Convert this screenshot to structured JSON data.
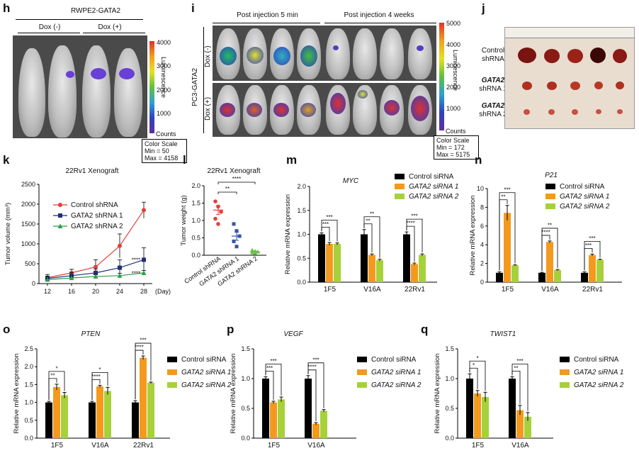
{
  "panels": {
    "h": {
      "letter": "h",
      "title": "RWPE2-GATA2",
      "groups": [
        "Dox (-)",
        "Dox (+)"
      ],
      "colorbar": {
        "ticks": [
          "4000",
          "3000",
          "2000",
          "1000"
        ],
        "label": "Luminescence",
        "counts": "Counts"
      },
      "scale_box": [
        "Color Scale",
        "Min = 50",
        "Max = 4158"
      ]
    },
    "i": {
      "letter": "i",
      "headers": [
        "Post injection 5 min",
        "Post injection 4 weeks"
      ],
      "row_group": "PC3-GATA2",
      "rows": [
        "Dox (-)",
        "Dox (+)"
      ],
      "colorbar": {
        "ticks": [
          "5000",
          "4000",
          "3000",
          "2000",
          "1000"
        ],
        "label": "Luminescence",
        "counts": "Counts"
      },
      "scale_box": [
        "Color Scale",
        "Min = 172",
        "Max = 5175"
      ]
    },
    "j": {
      "letter": "j",
      "rows": [
        {
          "line1": "Control",
          "line2": "shRNA"
        },
        {
          "line1": "GATA2",
          "line2": "shRNA 1"
        },
        {
          "line1": "GATA2",
          "line2": "shRNA 2"
        }
      ]
    },
    "k": {
      "letter": "k"
    },
    "l": {
      "letter": "l"
    },
    "m": {
      "letter": "m"
    },
    "n": {
      "letter": "n"
    },
    "o": {
      "letter": "o"
    },
    "p": {
      "letter": "p"
    },
    "q": {
      "letter": "q"
    }
  },
  "chart_data": [
    {
      "id": "k",
      "type": "line",
      "title": "22Rv1 Xenograft",
      "xlabel": "(Day)",
      "ylabel": "Tumor volume (mm³)",
      "x": [
        12,
        16,
        20,
        24,
        28
      ],
      "ylim": [
        0,
        2500
      ],
      "yticks": [
        0,
        500,
        1000,
        1500,
        2000,
        2500
      ],
      "series": [
        {
          "name": "Control shRNA",
          "color": "#e0403a",
          "values": [
            150,
            270,
            420,
            950,
            1850
          ],
          "err": [
            80,
            90,
            180,
            300,
            200
          ]
        },
        {
          "name": "GATA2 shRNA 1",
          "color": "#1f2f7a",
          "values": [
            130,
            200,
            270,
            400,
            600
          ],
          "err": [
            60,
            80,
            100,
            200,
            300
          ]
        },
        {
          "name": "GATA2 shRNA 2",
          "color": "#2e9e4e",
          "values": [
            100,
            140,
            180,
            200,
            270
          ],
          "err": [
            40,
            40,
            50,
            60,
            60
          ]
        }
      ],
      "annotations": [
        "****",
        "****"
      ]
    },
    {
      "id": "l",
      "type": "scatter",
      "title": "22Rv1 Xenograft",
      "ylabel": "Tumor weight (g)",
      "categories": [
        "Control shRNA",
        "GATA2 shRNA 1",
        "GATA2 shRNA 2"
      ],
      "ylim": [
        0,
        2.0
      ],
      "yticks": [
        0.0,
        0.5,
        1.0,
        1.5,
        2.0
      ],
      "series": [
        {
          "color": "#e0403a",
          "points": [
            1.55,
            1.4,
            1.25,
            1.05,
            0.9
          ],
          "mean": 1.3,
          "sem": 0.13
        },
        {
          "color": "#3456a8",
          "points": [
            0.9,
            0.7,
            0.55,
            0.4,
            0.25
          ],
          "mean": 0.55,
          "sem": 0.12
        },
        {
          "color": "#6cc04a",
          "points": [
            0.15,
            0.12,
            0.1,
            0.08,
            0.06
          ],
          "mean": 0.1,
          "sem": 0.02
        }
      ],
      "annotations": [
        "****",
        "**"
      ]
    },
    {
      "id": "m",
      "type": "bar",
      "title": "MYC",
      "ylabel": "Relative mRNA expression",
      "categories": [
        "1F5",
        "V16A",
        "22Rv1"
      ],
      "ylim": [
        0,
        2.0
      ],
      "yticks": [
        0.0,
        0.5,
        1.0,
        1.5,
        2.0
      ],
      "series": [
        {
          "name": "Control siRNA",
          "color": "#000000",
          "values": [
            1.0,
            1.0,
            1.0
          ],
          "err": [
            0.03,
            0.1,
            0.05
          ]
        },
        {
          "name": "GATA2 siRNA 1",
          "color": "#f39a1e",
          "values": [
            0.8,
            0.57,
            0.38
          ],
          "err": [
            0.03,
            0.02,
            0.02
          ]
        },
        {
          "name": "GATA2 siRNA 2",
          "color": "#a6d13a",
          "values": [
            0.8,
            0.46,
            0.57
          ],
          "err": [
            0.02,
            0.02,
            0.02
          ]
        }
      ],
      "sig": [
        [
          "***",
          "***"
        ],
        [
          "**",
          "**"
        ],
        [
          "****",
          "***"
        ]
      ]
    },
    {
      "id": "n",
      "type": "bar",
      "title": "P21",
      "ylabel": "Relative mRNA expression",
      "categories": [
        "1F5",
        "V16A",
        "22Rv1"
      ],
      "ylim": [
        0,
        10
      ],
      "yticks": [
        0,
        2,
        4,
        6,
        8,
        10
      ],
      "series": [
        {
          "name": "Control siRNA",
          "color": "#000000",
          "values": [
            1.0,
            1.0,
            1.0
          ],
          "err": [
            0.1,
            0.05,
            0.1
          ]
        },
        {
          "name": "GATA2 siRNA 1",
          "color": "#f39a1e",
          "values": [
            7.4,
            4.3,
            2.9
          ],
          "err": [
            0.8,
            0.1,
            0.1
          ]
        },
        {
          "name": "GATA2 siRNA 2",
          "color": "#a6d13a",
          "values": [
            1.8,
            1.3,
            2.4
          ],
          "err": [
            0.05,
            0.05,
            0.05
          ]
        }
      ],
      "sig": [
        [
          "**",
          "***"
        ],
        [
          "****",
          "**"
        ],
        [
          "***",
          "***"
        ]
      ]
    },
    {
      "id": "o",
      "type": "bar",
      "title": "PTEN",
      "ylabel": "Relative mRNA expression",
      "categories": [
        "1F5",
        "V16A",
        "22Rv1"
      ],
      "ylim": [
        0,
        2.5
      ],
      "yticks": [
        0.0,
        0.5,
        1.0,
        1.5,
        2.0,
        2.5
      ],
      "series": [
        {
          "name": "Control siRNA",
          "color": "#000000",
          "values": [
            1.0,
            1.0,
            1.0
          ],
          "err": [
            0.03,
            0.03,
            0.05
          ]
        },
        {
          "name": "GATA2 siRNA 1",
          "color": "#f39a1e",
          "values": [
            1.43,
            1.45,
            2.25
          ],
          "err": [
            0.08,
            0.03,
            0.05
          ]
        },
        {
          "name": "GATA2 siRNA 2",
          "color": "#a6d13a",
          "values": [
            1.2,
            1.32,
            1.55
          ],
          "err": [
            0.08,
            0.1,
            0.02
          ]
        }
      ],
      "sig": [
        [
          "**",
          "*"
        ],
        [
          "****",
          "*"
        ],
        [
          "****",
          "***"
        ]
      ]
    },
    {
      "id": "p",
      "type": "bar",
      "title": "VEGF",
      "ylabel": "Relative mRNA expression",
      "categories": [
        "1F5",
        "V16A"
      ],
      "ylim": [
        0,
        1.5
      ],
      "yticks": [
        0.0,
        0.5,
        1.0,
        1.5
      ],
      "series": [
        {
          "name": "Control siRNA",
          "color": "#000000",
          "values": [
            1.0,
            1.0
          ],
          "err": [
            0.03,
            0.05
          ]
        },
        {
          "name": "GATA2 siRNA 1",
          "color": "#f39a1e",
          "values": [
            0.6,
            0.24
          ],
          "err": [
            0.02,
            0.02
          ]
        },
        {
          "name": "GATA2 siRNA 2",
          "color": "#a6d13a",
          "values": [
            0.65,
            0.46
          ],
          "err": [
            0.04,
            0.02
          ]
        }
      ],
      "sig": [
        [
          "***",
          "***"
        ],
        [
          "****",
          "***"
        ]
      ]
    },
    {
      "id": "q",
      "type": "bar",
      "title": "TWIST1",
      "ylabel": "Relative mRNA expression",
      "categories": [
        "1F5",
        "V16A"
      ],
      "ylim": [
        0,
        1.5
      ],
      "yticks": [
        0.0,
        0.5,
        1.0,
        1.5
      ],
      "series": [
        {
          "name": "Control siRNA",
          "color": "#000000",
          "values": [
            1.0,
            1.0
          ],
          "err": [
            0.08,
            0.03
          ]
        },
        {
          "name": "GATA2 siRNA 1",
          "color": "#f39a1e",
          "values": [
            0.75,
            0.47
          ],
          "err": [
            0.05,
            0.08
          ]
        },
        {
          "name": "GATA2 siRNA 2",
          "color": "#a6d13a",
          "values": [
            0.69,
            0.36
          ],
          "err": [
            0.08,
            0.07
          ]
        }
      ],
      "sig": [
        [
          "*",
          "*"
        ],
        [
          "**",
          "***"
        ]
      ]
    }
  ]
}
